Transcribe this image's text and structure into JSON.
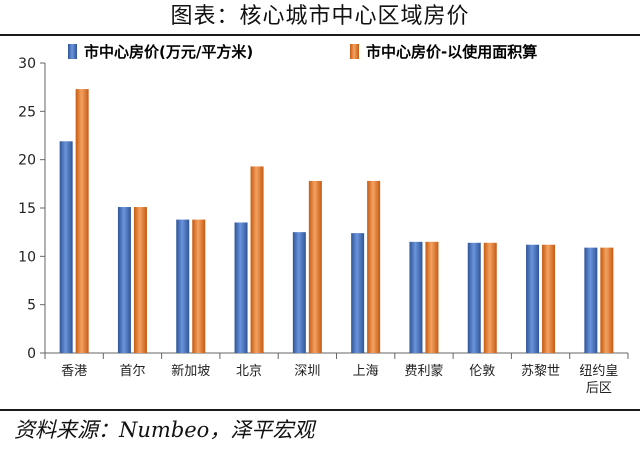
{
  "header": {
    "title": "图表：核心城市中心区域房价"
  },
  "footer": {
    "source": "资料来源：Numbeo，泽平宏观"
  },
  "colors": {
    "series1": "#4472C4",
    "series2": "#ED7D31"
  },
  "chart_data": {
    "type": "bar",
    "title": "",
    "xlabel": "",
    "ylabel": "",
    "ylim": [
      0,
      30
    ],
    "yticks": [
      0,
      5,
      10,
      15,
      20,
      25,
      30
    ],
    "grid": false,
    "legend_position": "top",
    "categories": [
      [
        "香港"
      ],
      [
        "首尔"
      ],
      [
        "新加坡"
      ],
      [
        "北京"
      ],
      [
        "深圳"
      ],
      [
        "上海"
      ],
      [
        "费利蒙"
      ],
      [
        "伦敦"
      ],
      [
        "苏黎世"
      ],
      [
        "纽约皇",
        "后区"
      ]
    ],
    "series": [
      {
        "name": "市中心房价(万元/平方米)",
        "values": [
          21.9,
          15.1,
          13.8,
          13.5,
          12.5,
          12.4,
          11.5,
          11.4,
          11.2,
          10.9
        ]
      },
      {
        "name": "市中心房价-以使用面积算",
        "values": [
          27.3,
          15.1,
          13.8,
          19.3,
          17.8,
          17.8,
          11.5,
          11.4,
          11.2,
          10.9
        ]
      }
    ]
  }
}
